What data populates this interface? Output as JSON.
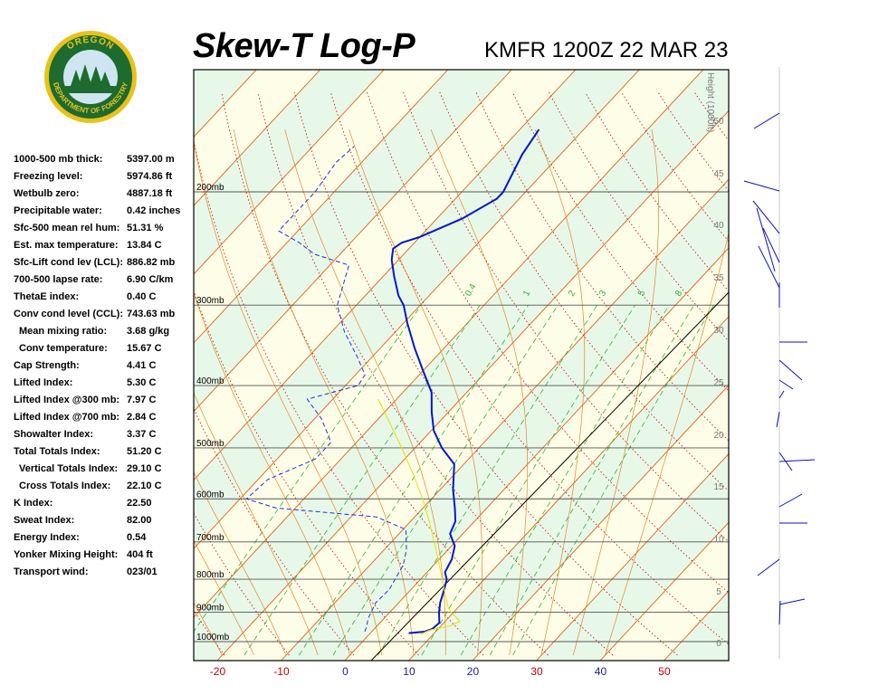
{
  "header": {
    "title": "Skew-T Log-P",
    "station": "KMFR 1200Z 22 MAR 23"
  },
  "logo": {
    "top_text": "OREGON",
    "bottom_text": "DEPARTMENT OF FORESTRY",
    "colors": {
      "gold": "#e8c21a",
      "green": "#1d6b2f",
      "sky": "#cfe6f2"
    }
  },
  "indices": [
    {
      "label": "1000-500 mb thick:",
      "value": "5397.00 m",
      "sub": false
    },
    {
      "label": "Freezing level:",
      "value": "5974.86 ft",
      "sub": false
    },
    {
      "label": "Wetbulb zero:",
      "value": "4887.18 ft",
      "sub": false
    },
    {
      "label": "Precipitable water:",
      "value": "0.42 inches",
      "sub": false
    },
    {
      "label": "Sfc-500 mean rel hum:",
      "value": "51.31 %",
      "sub": false
    },
    {
      "label": "Est. max temperature:",
      "value": "13.84 C",
      "sub": false
    },
    {
      "label": "Sfc-Lift cond lev (LCL):",
      "value": "886.82 mb",
      "sub": false
    },
    {
      "label": "700-500 lapse rate:",
      "value": "6.90 C/km",
      "sub": false
    },
    {
      "label": "ThetaE index:",
      "value": "0.40 C",
      "sub": false
    },
    {
      "label": "Conv cond level (CCL):",
      "value": "743.63 mb",
      "sub": false
    },
    {
      "label": "Mean mixing ratio:",
      "value": "3.68 g/kg",
      "sub": true
    },
    {
      "label": "Conv temperature:",
      "value": "15.67 C",
      "sub": true
    },
    {
      "label": "Cap Strength:",
      "value": "4.41 C",
      "sub": false
    },
    {
      "label": "Lifted Index:",
      "value": "5.30 C",
      "sub": false
    },
    {
      "label": "Lifted Index @300 mb:",
      "value": "7.97 C",
      "sub": false
    },
    {
      "label": "Lifted Index @700 mb:",
      "value": "2.84 C",
      "sub": false
    },
    {
      "label": "Showalter Index:",
      "value": "3.37 C",
      "sub": false
    },
    {
      "label": "Total Totals Index:",
      "value": "51.20 C",
      "sub": false
    },
    {
      "label": "Vertical Totals Index:",
      "value": "29.10 C",
      "sub": true
    },
    {
      "label": "Cross Totals Index:",
      "value": "22.10 C",
      "sub": true
    },
    {
      "label": "K Index:",
      "value": "22.50",
      "sub": false
    },
    {
      "label": "Sweat Index:",
      "value": "82.00",
      "sub": false
    },
    {
      "label": "Energy Index:",
      "value": "0.54",
      "sub": false
    },
    {
      "label": "Yonker Mixing Height:",
      "value": "404 ft",
      "sub": false
    },
    {
      "label": "Transport wind:",
      "value": "023/01",
      "sub": false
    }
  ],
  "chart_data": {
    "type": "line",
    "title": "Skew-T Log-P",
    "xlabel": "",
    "ylabel": "",
    "x_ticks": [
      -20,
      -10,
      0,
      10,
      20,
      30,
      40,
      50
    ],
    "pressure_levels": [
      200,
      300,
      400,
      500,
      600,
      700,
      800,
      900,
      1000
    ],
    "pressure_labels": [
      "200mb",
      "300mb",
      "400mb",
      "500mb",
      "600mb",
      "700mb",
      "800mb",
      "900mb",
      "1000mb"
    ],
    "height_label": "Height (1000ft)",
    "height_ticks": [
      0,
      5,
      10,
      15,
      20,
      25,
      30,
      35,
      40,
      45,
      50
    ],
    "mixing_ratio_labels": [
      "0.4",
      "1",
      "2",
      "3",
      "5",
      "8"
    ],
    "colors": {
      "temperature": "#0018c8",
      "dewpoint": "#2030d8",
      "parcel": "#e8e000",
      "dry_adiabat": "#e07818",
      "isotherm": "#e06018",
      "moist_adiabat": "#c00000",
      "mixing_ratio": "#30b030",
      "band_light": "#fefee8",
      "band_green": "#e8f8e8"
    },
    "series": [
      {
        "key": "temperature",
        "points": [
          [
            970,
            6.0
          ],
          [
            965,
            8.3
          ],
          [
            955,
            9.1
          ],
          [
            935,
            9.3
          ],
          [
            900,
            7.7
          ],
          [
            870,
            6.5
          ],
          [
            830,
            5.2
          ],
          [
            800,
            4.1
          ],
          [
            780,
            2.8
          ],
          [
            745,
            2.0
          ],
          [
            710,
            0.5
          ],
          [
            680,
            -2.0
          ],
          [
            650,
            -3.0
          ],
          [
            620,
            -5.0
          ],
          [
            580,
            -8.0
          ],
          [
            530,
            -11.5
          ],
          [
            500,
            -15.8
          ],
          [
            470,
            -19.6
          ],
          [
            440,
            -22.6
          ],
          [
            410,
            -25.5
          ],
          [
            380,
            -29.9
          ],
          [
            350,
            -34.6
          ],
          [
            320,
            -39.4
          ],
          [
            300,
            -42.6
          ],
          [
            290,
            -44.8
          ],
          [
            270,
            -48.4
          ],
          [
            255,
            -51.1
          ],
          [
            245,
            -52.5
          ],
          [
            240,
            -52.0
          ],
          [
            235,
            -50.0
          ],
          [
            220,
            -46.0
          ],
          [
            205,
            -43.5
          ],
          [
            200,
            -43.5
          ],
          [
            175,
            -46.0
          ],
          [
            160,
            -47.0
          ]
        ]
      },
      {
        "key": "dewpoint",
        "points": [
          [
            965,
            -1.1
          ],
          [
            950,
            -1.5
          ],
          [
            920,
            -2.5
          ],
          [
            870,
            -3.6
          ],
          [
            830,
            -3.4
          ],
          [
            760,
            -4.8
          ],
          [
            720,
            -6.5
          ],
          [
            670,
            -9.5
          ],
          [
            640,
            -16.0
          ],
          [
            620,
            -33.0
          ],
          [
            600,
            -39.0
          ],
          [
            560,
            -38.5
          ],
          [
            520,
            -34.0
          ],
          [
            490,
            -34.0
          ],
          [
            450,
            -39.0
          ],
          [
            420,
            -44.0
          ],
          [
            400,
            -38.0
          ],
          [
            385,
            -38.5
          ],
          [
            360,
            -42.5
          ],
          [
            330,
            -48.0
          ],
          [
            300,
            -53.0
          ],
          [
            260,
            -57.0
          ],
          [
            250,
            -64.0
          ],
          [
            240,
            -68.0
          ],
          [
            230,
            -73.0
          ],
          [
            210,
            -73.0
          ],
          [
            200,
            -73.0
          ],
          [
            180,
            -74.0
          ],
          [
            170,
            -73.5
          ]
        ]
      },
      {
        "key": "parcel",
        "points": [
          [
            975,
            8.0
          ],
          [
            960,
            8.8
          ],
          [
            945,
            11.5
          ],
          [
            930,
            12.3
          ],
          [
            900,
            9.6
          ],
          [
            886,
            8.5
          ],
          [
            850,
            6.4
          ],
          [
            800,
            3.4
          ],
          [
            750,
            0.2
          ],
          [
            700,
            -3.3
          ],
          [
            650,
            -7.1
          ],
          [
            600,
            -11.4
          ],
          [
            550,
            -16.4
          ],
          [
            500,
            -22.1
          ],
          [
            450,
            -28.6
          ],
          [
            420,
            -32.9
          ]
        ]
      }
    ],
    "wind_barbs_note": "wind profile shown at right"
  }
}
